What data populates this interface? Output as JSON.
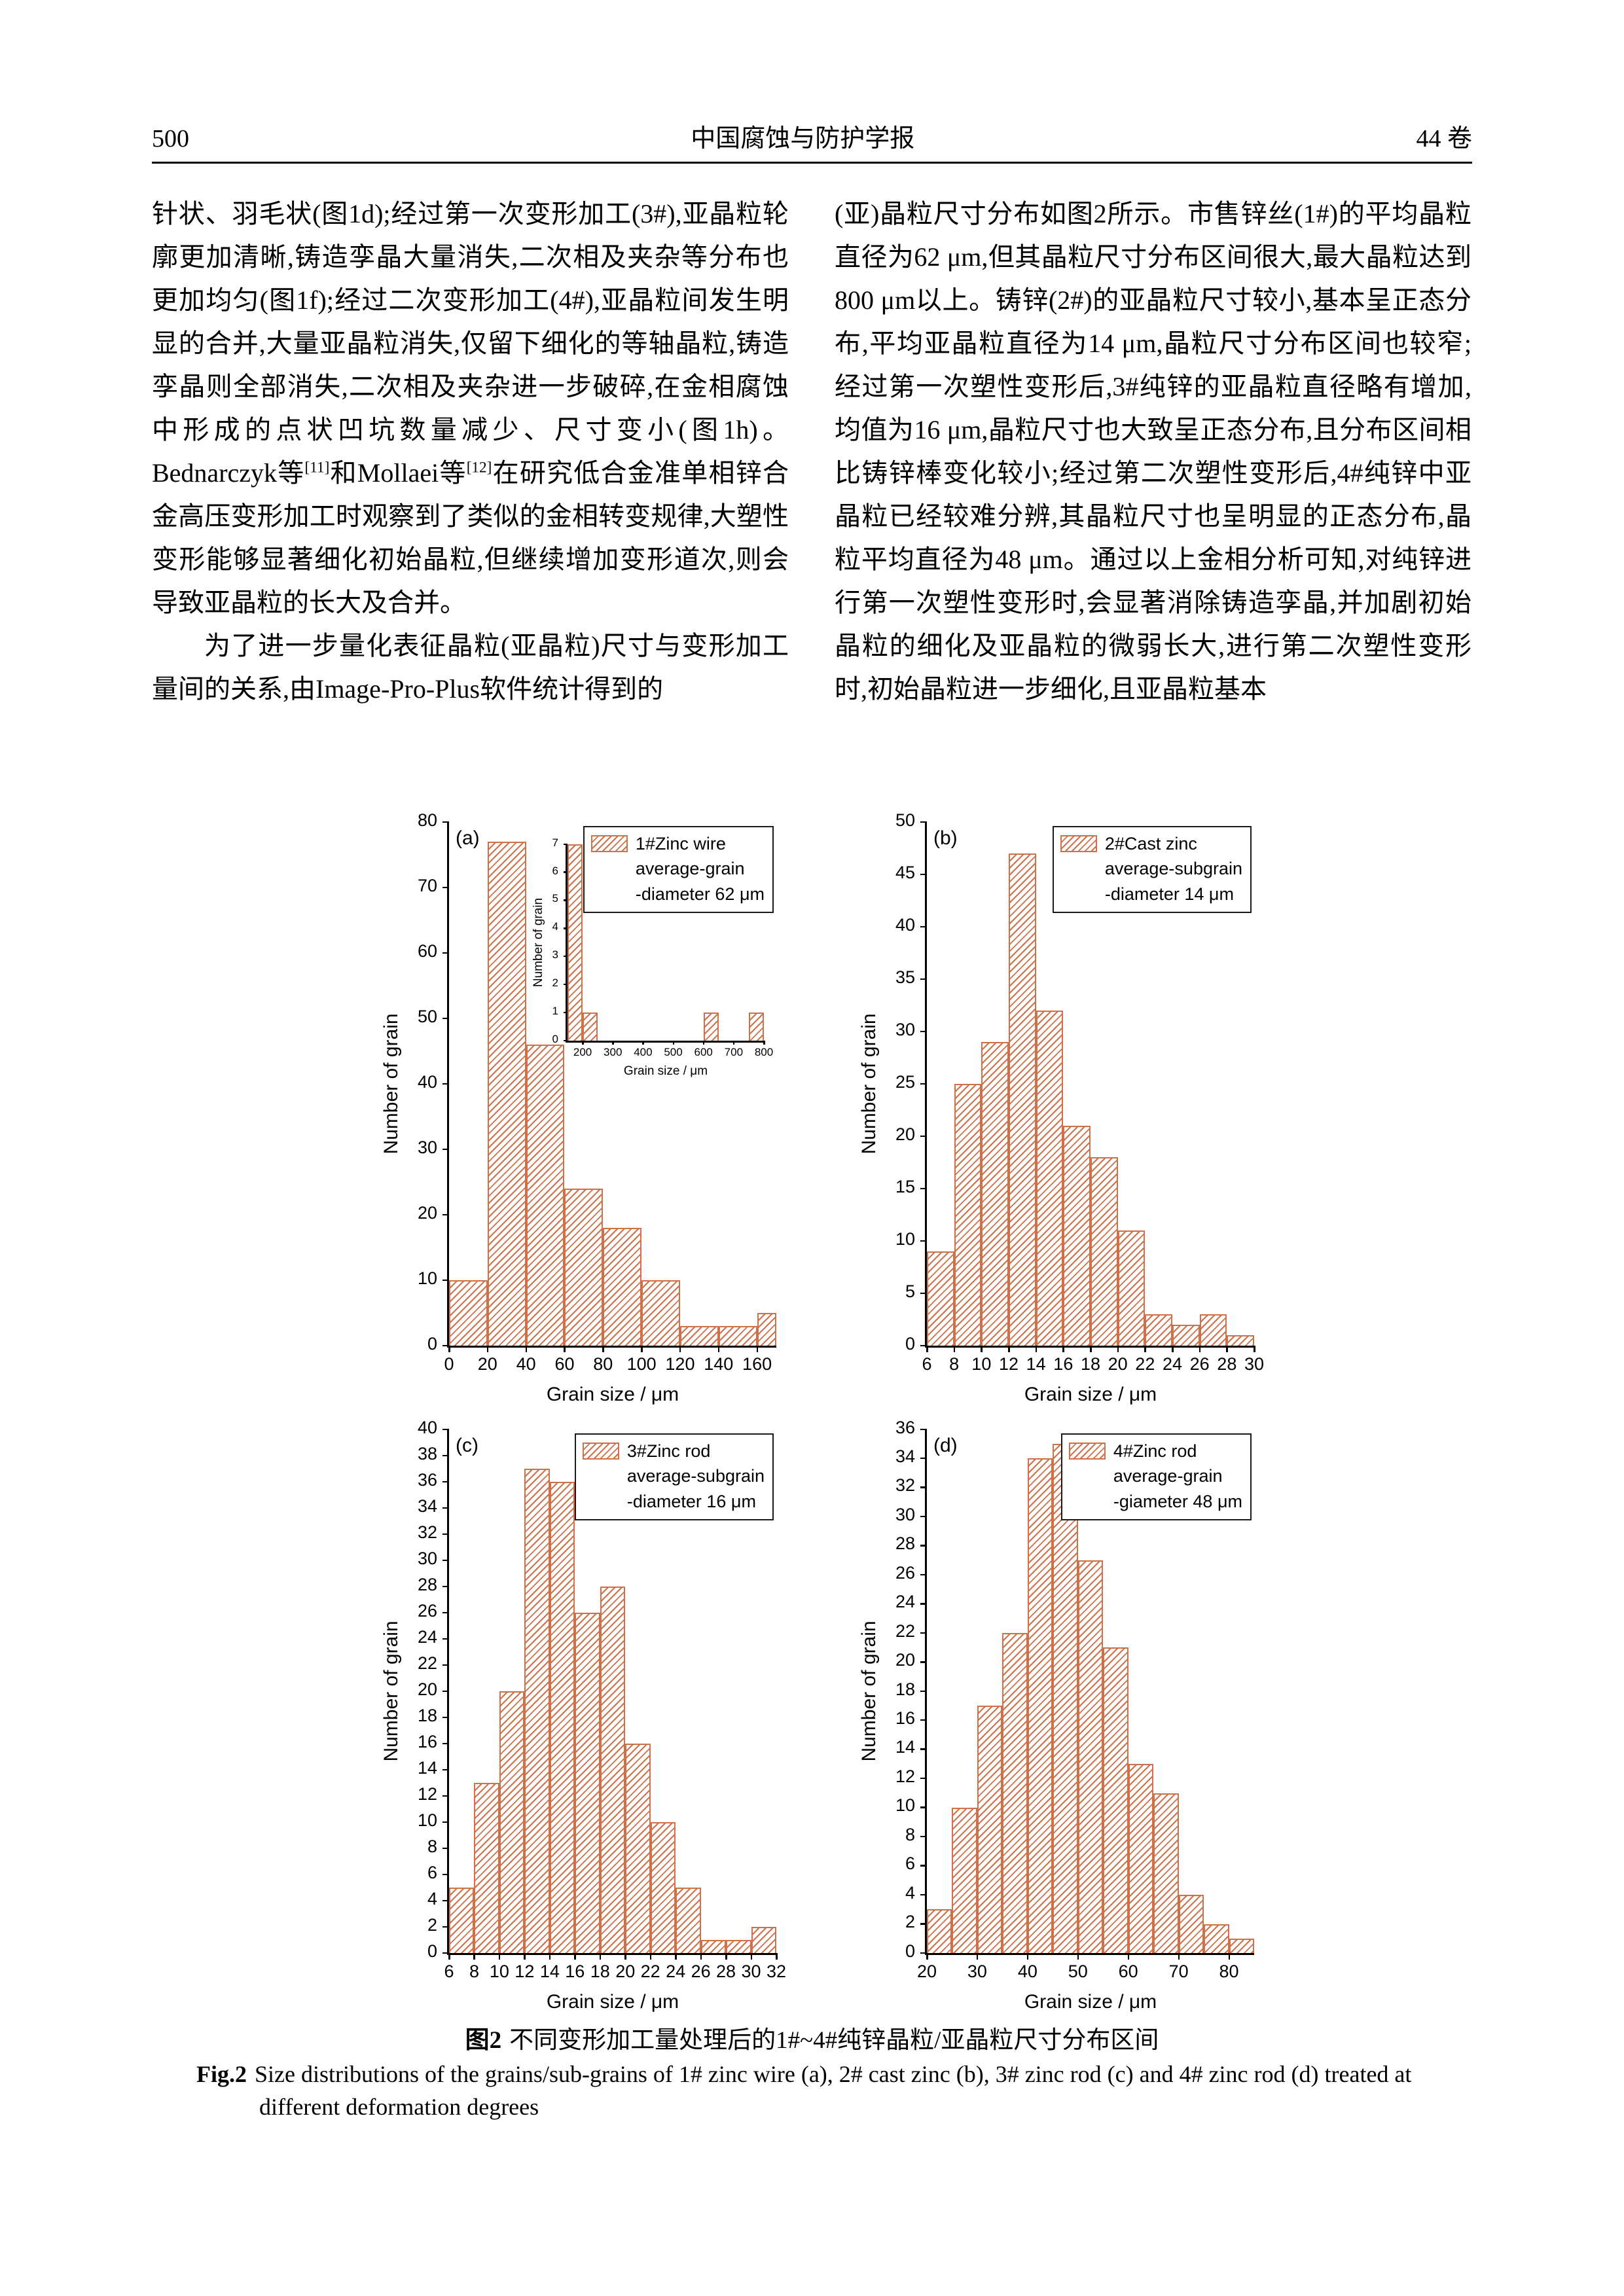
{
  "colors": {
    "hatch": "#cf7148",
    "axis": "#000000"
  },
  "header": {
    "page_number": "500",
    "journal_title": "中国腐蚀与防护学报",
    "volume_label": "44 卷"
  },
  "body": {
    "left_column": [
      {
        "indent": false,
        "text": "针状、羽毛状(图1d);经过第一次变形加工(3#),亚晶粒轮廓更加清晰,铸造孪晶大量消失,二次相及夹杂等分布也更加均匀(图1f);经过二次变形加工(4#),亚晶粒间发生明显的合并,大量亚晶粒消失,仅留下细化的等轴晶粒,铸造孪晶则全部消失,二次相及夹杂进一步破碎,在金相腐蚀中形成的点状凹坑数量减少、尺寸变小(图1h)。Bednarczyk等[11]和Mollaei等[12]在研究低合金准单相锌合金高压变形加工时观察到了类似的金相转变规律,大塑性变形能够显著细化初始晶粒,但继续增加变形道次,则会导致亚晶粒的长大及合并。"
      },
      {
        "indent": true,
        "text": "为了进一步量化表征晶粒(亚晶粒)尺寸与变形加工量间的关系,由Image-Pro-Plus软件统计得到的"
      }
    ],
    "right_column": [
      {
        "indent": false,
        "text": "(亚)晶粒尺寸分布如图2所示。市售锌丝(1#)的平均晶粒直径为62 μm,但其晶粒尺寸分布区间很大,最大晶粒达到800 μm以上。铸锌(2#)的亚晶粒尺寸较小,基本呈正态分布,平均亚晶粒直径为14 μm,晶粒尺寸分布区间也较窄;经过第一次塑性变形后,3#纯锌的亚晶粒直径略有增加,均值为16 μm,晶粒尺寸也大致呈正态分布,且分布区间相比铸锌棒变化较小;经过第二次塑性变形后,4#纯锌中亚晶粒已经较难分辨,其晶粒尺寸也呈明显的正态分布,晶粒平均直径为48 μm。通过以上金相分析可知,对纯锌进行第一次塑性变形时,会显著消除铸造孪晶,并加剧初始晶粒的细化及亚晶粒的微弱长大,进行第二次塑性变形时,初始晶粒进一步细化,且亚晶粒基本"
      }
    ]
  },
  "figure": {
    "caption_zh_label": "图2",
    "caption_zh_text": "不同变形加工量处理后的1#~4#纯锌晶粒/亚晶粒尺寸分布区间",
    "caption_en_label": "Fig.2",
    "caption_en_text": "Size distributions of the grains/sub-grains of 1# zinc wire (a), 2# cast zinc (b), 3# zinc rod (c) and 4# zinc rod (d) treated at different deformation degrees"
  },
  "chart_data": [
    {
      "type": "bar",
      "panel": "(a)",
      "legend": [
        "1#Zinc wire",
        "average-grain",
        "-diameter 62 μm"
      ],
      "xlabel": "Grain size / μm",
      "ylabel": "Number of grain",
      "xlim": [
        0,
        170
      ],
      "ylim": [
        0,
        80
      ],
      "x_ticks": [
        0,
        20,
        40,
        60,
        80,
        100,
        120,
        140,
        160
      ],
      "y_ticks": [
        0,
        10,
        20,
        30,
        40,
        50,
        60,
        70,
        80
      ],
      "bin_start": 0,
      "bin_width": 20,
      "values": [
        10,
        77,
        46,
        24,
        18,
        10,
        3,
        3,
        5
      ],
      "inset": {
        "type": "bar",
        "xlabel": "Grain size / μm",
        "ylabel": "Number of grain",
        "xlim": [
          150,
          800
        ],
        "ylim": [
          0,
          7
        ],
        "x_ticks": [
          200,
          300,
          400,
          500,
          600,
          700,
          800
        ],
        "y_ticks": [
          0,
          1,
          2,
          3,
          4,
          5,
          6,
          7
        ],
        "bin_start": 150,
        "bin_width": 50,
        "values": [
          7,
          1,
          0,
          0,
          0,
          0,
          0,
          0,
          0,
          1,
          0,
          0,
          1
        ]
      }
    },
    {
      "type": "bar",
      "panel": "(b)",
      "legend": [
        "2#Cast zinc",
        "average-subgrain",
        "-diameter 14 μm"
      ],
      "xlabel": "Grain size / μm",
      "ylabel": "Number of grain",
      "xlim": [
        6,
        30
      ],
      "ylim": [
        0,
        50
      ],
      "x_ticks": [
        6,
        8,
        10,
        12,
        14,
        16,
        18,
        20,
        22,
        24,
        26,
        28,
        30
      ],
      "y_ticks": [
        0,
        5,
        10,
        15,
        20,
        25,
        30,
        35,
        40,
        45,
        50
      ],
      "bin_start": 6,
      "bin_width": 2,
      "values": [
        9,
        25,
        29,
        47,
        32,
        21,
        18,
        11,
        3,
        2,
        3,
        1
      ]
    },
    {
      "type": "bar",
      "panel": "(c)",
      "legend": [
        "3#Zinc rod",
        "average-subgrain",
        "-diameter 16 μm"
      ],
      "xlabel": "Grain size / μm",
      "ylabel": "Number of grain",
      "xlim": [
        6,
        32
      ],
      "ylim": [
        0,
        40
      ],
      "x_ticks": [
        6,
        8,
        10,
        12,
        14,
        16,
        18,
        20,
        22,
        24,
        26,
        28,
        30,
        32
      ],
      "y_ticks": [
        0,
        2,
        4,
        6,
        8,
        10,
        12,
        14,
        16,
        18,
        20,
        22,
        24,
        26,
        28,
        30,
        32,
        34,
        36,
        38,
        40
      ],
      "bin_start": 6,
      "bin_width": 2,
      "values": [
        5,
        13,
        20,
        37,
        36,
        26,
        28,
        16,
        10,
        5,
        1,
        1,
        2
      ]
    },
    {
      "type": "bar",
      "panel": "(d)",
      "legend": [
        "4#Zinc rod",
        "average-grain",
        "-giameter 48 μm"
      ],
      "xlabel": "Grain size / μm",
      "ylabel": "Number of grain",
      "xlim": [
        20,
        85
      ],
      "ylim": [
        0,
        36
      ],
      "x_ticks": [
        20,
        30,
        40,
        50,
        60,
        70,
        80
      ],
      "y_ticks": [
        0,
        2,
        4,
        6,
        8,
        10,
        12,
        14,
        16,
        18,
        20,
        22,
        24,
        26,
        28,
        30,
        32,
        34,
        36
      ],
      "bin_start": 20,
      "bin_width": 5,
      "values": [
        3,
        10,
        17,
        22,
        34,
        35,
        27,
        21,
        13,
        11,
        4,
        2,
        1
      ]
    }
  ]
}
